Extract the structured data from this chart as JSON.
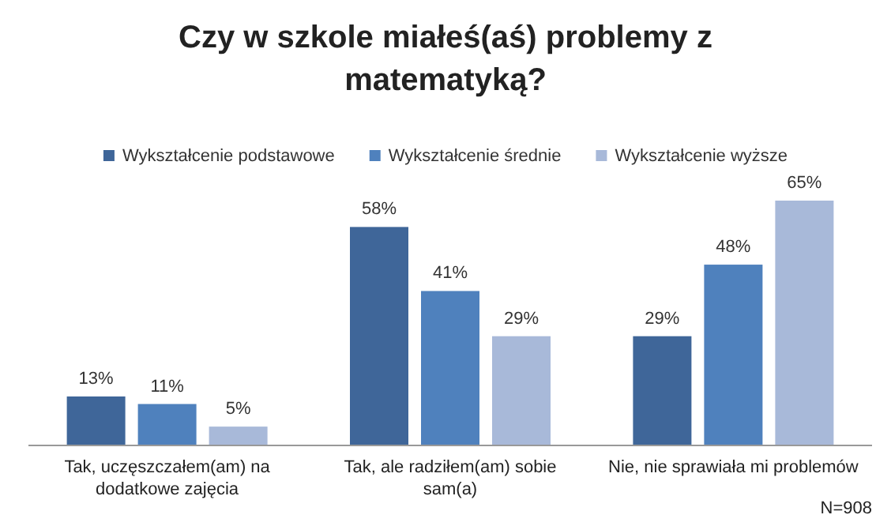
{
  "chart_data": {
    "type": "bar",
    "title": "Czy w szkole miałeś(aś) problemy z matematyką?",
    "categories": [
      "Tak, uczęszczałem(am) na dodatkowe zajęcia",
      "Tak, ale radziłem(am) sobie sam(a)",
      "Nie, nie sprawiała mi problemów"
    ],
    "series": [
      {
        "name": "Wykształcenie podstawowe",
        "color": "#3f6699",
        "values": [
          13,
          58,
          29
        ],
        "value_labels": [
          "13%",
          "58%",
          "29%"
        ]
      },
      {
        "name": "Wykształcenie średnie",
        "color": "#4f81bd",
        "values": [
          11,
          41,
          48
        ],
        "value_labels": [
          "11%",
          "41%",
          "48%"
        ]
      },
      {
        "name": "Wykształcenie wyższe",
        "color": "#a8b9d9",
        "values": [
          5,
          29,
          65
        ],
        "value_labels": [
          "5%",
          "29%",
          "65%"
        ]
      }
    ],
    "legend": "top",
    "annotations": [
      "N=908"
    ]
  }
}
